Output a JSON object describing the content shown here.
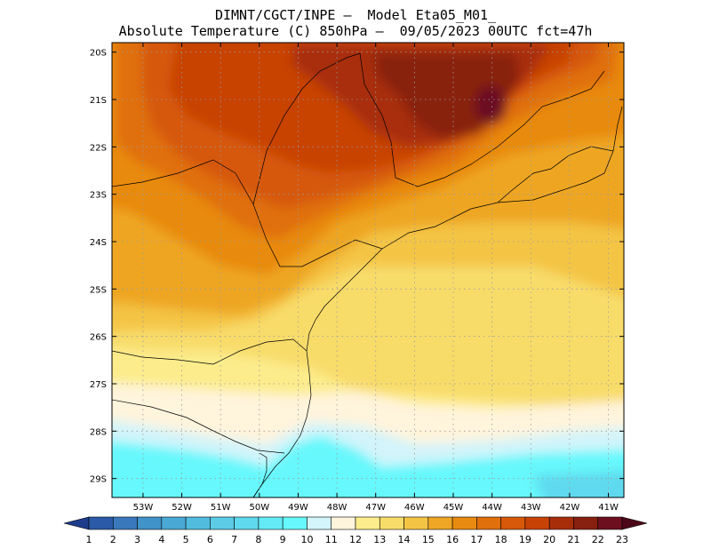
{
  "header": {
    "line1": "DIMNT/CGCT/INPE —  Model Eta05_M01_",
    "line2": "Absolute Temperature (C) 850hPa —  09/05/2023 00UTC fct=47h"
  },
  "map": {
    "variable": "Absolute Temperature",
    "units": "C",
    "level": "850hPa",
    "lat_range": [
      -29.4,
      -19.8
    ],
    "lon_range": [
      -53.8,
      -40.6
    ],
    "lat_labels": [
      "20S",
      "21S",
      "22S",
      "23S",
      "24S",
      "25S",
      "26S",
      "27S",
      "28S",
      "29S"
    ],
    "lat_values": [
      -20,
      -21,
      -22,
      -23,
      -24,
      -25,
      -26,
      -27,
      -28,
      -29
    ],
    "lon_labels": [
      "53W",
      "52W",
      "51W",
      "50W",
      "49W",
      "48W",
      "47W",
      "46W",
      "45W",
      "44W",
      "43W",
      "42W",
      "41W"
    ],
    "lon_values": [
      -53,
      -52,
      -51,
      -50,
      -49,
      -48,
      -47,
      -46,
      -45,
      -44,
      -43,
      -42,
      -41
    ]
  },
  "colorbar": {
    "labels": [
      "1",
      "2",
      "3",
      "4",
      "5",
      "6",
      "7",
      "8",
      "9",
      "10",
      "11",
      "12",
      "13",
      "14",
      "15",
      "16",
      "17",
      "18",
      "19",
      "20",
      "21",
      "22",
      "23"
    ],
    "colors": [
      "#1e3c8c",
      "#2a5aa8",
      "#3a78bc",
      "#3f93c8",
      "#4aa8d4",
      "#52bcde",
      "#5ccbe6",
      "#5fd9ee",
      "#63eaf6",
      "#66f8fc",
      "#d2f4fa",
      "#fff4dc",
      "#fcec8c",
      "#f8dc6a",
      "#f4c444",
      "#eea624",
      "#e88a10",
      "#e0700c",
      "#d65808",
      "#c84206",
      "#a82e0a",
      "#882010",
      "#6c1020",
      "#4c0818"
    ]
  },
  "legend_title": "Absolute Temperature (C)"
}
